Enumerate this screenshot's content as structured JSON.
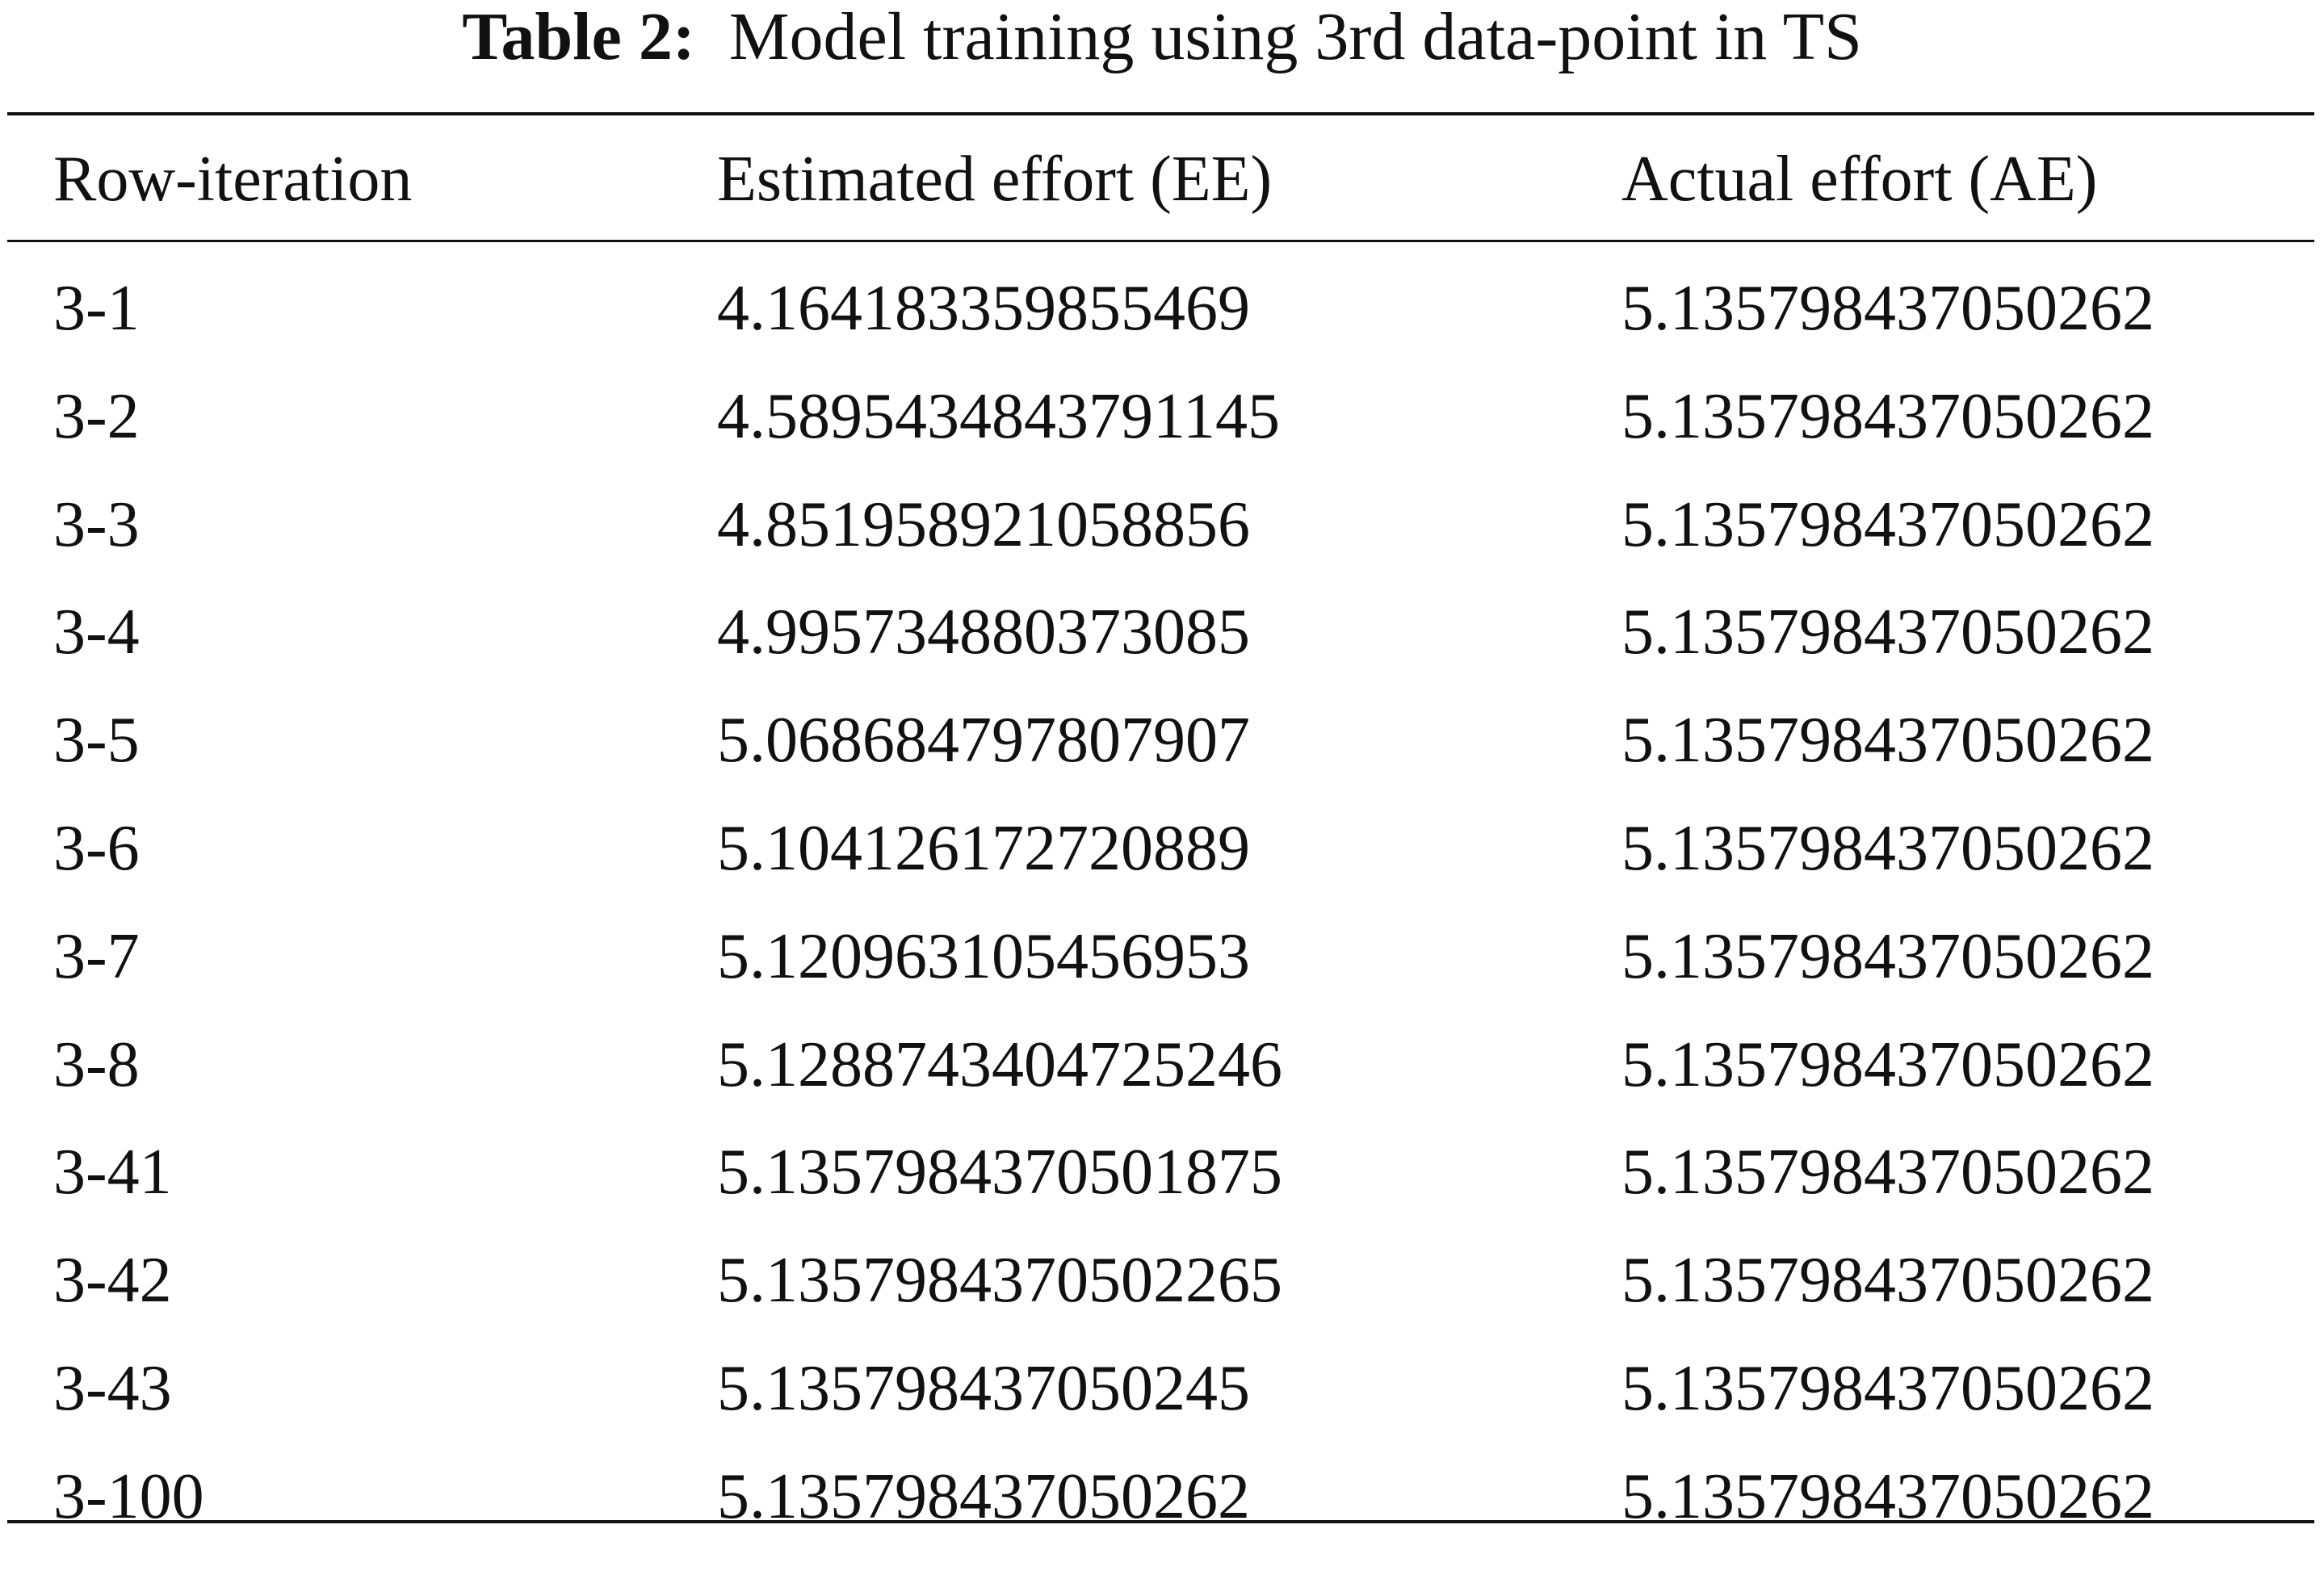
{
  "table": {
    "caption_label": "Table 2:",
    "caption_text": "Model training using 3rd data-point in TS",
    "header": [
      "Row-iteration",
      "Estimated effort (EE)",
      "Actual effort (AE)"
    ],
    "rows": [
      [
        "3-1",
        "4.164183359855469",
        "5.135798437050262"
      ],
      [
        "3-2",
        "4.5895434843791145",
        "5.135798437050262"
      ],
      [
        "3-3",
        "4.851958921058856",
        "5.135798437050262"
      ],
      [
        "3-4",
        "4.995734880373085",
        "5.135798437050262"
      ],
      [
        "3-5",
        "5.068684797807907",
        "5.135798437050262"
      ],
      [
        "3-6",
        "5.104126172720889",
        "5.135798437050262"
      ],
      [
        "3-7",
        "5.120963105456953",
        "5.135798437050262"
      ],
      [
        "3-8",
        "5.1288743404725246",
        "5.135798437050262"
      ],
      [
        "3-41",
        "5.1357984370501875",
        "5.135798437050262"
      ],
      [
        "3-42",
        "5.1357984370502265",
        "5.135798437050262"
      ],
      [
        "3-43",
        "5.135798437050245",
        "5.135798437050262"
      ],
      [
        "3-100",
        "5.135798437050262",
        "5.135798437050262"
      ]
    ]
  }
}
